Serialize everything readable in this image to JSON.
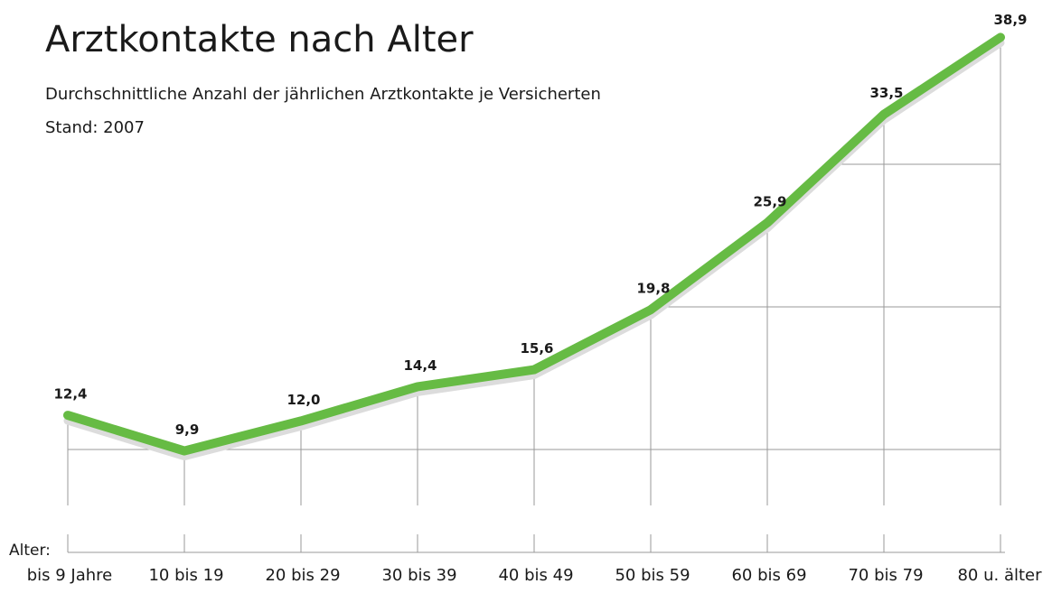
{
  "chart_data": {
    "type": "line",
    "title": "Arztkontakte nach Alter",
    "subtitle": "Durchschnittliche Anzahl der jährlichen Arztkontakte je Versicherten",
    "note": "Stand: 2007",
    "x_label": "Alter:",
    "categories": [
      "bis 9 Jahre",
      "10 bis 19",
      "20 bis 29",
      "30 bis 39",
      "40 bis 49",
      "50 bis 59",
      "60 bis 69",
      "70 bis 79",
      "80 u. älter"
    ],
    "series": [
      {
        "name": "Arztkontakte",
        "color": "#66bb44",
        "values": [
          12.4,
          9.9,
          12.0,
          14.4,
          15.6,
          19.8,
          25.9,
          33.5,
          38.9
        ],
        "value_labels": [
          "12,4",
          "9,9",
          "12,0",
          "14,4",
          "15,6",
          "19,8",
          "25,9",
          "33,5",
          "38,9"
        ]
      }
    ],
    "ylim": [
      0,
      41.5
    ],
    "yticks": [
      10,
      20,
      30
    ],
    "grid": true
  }
}
